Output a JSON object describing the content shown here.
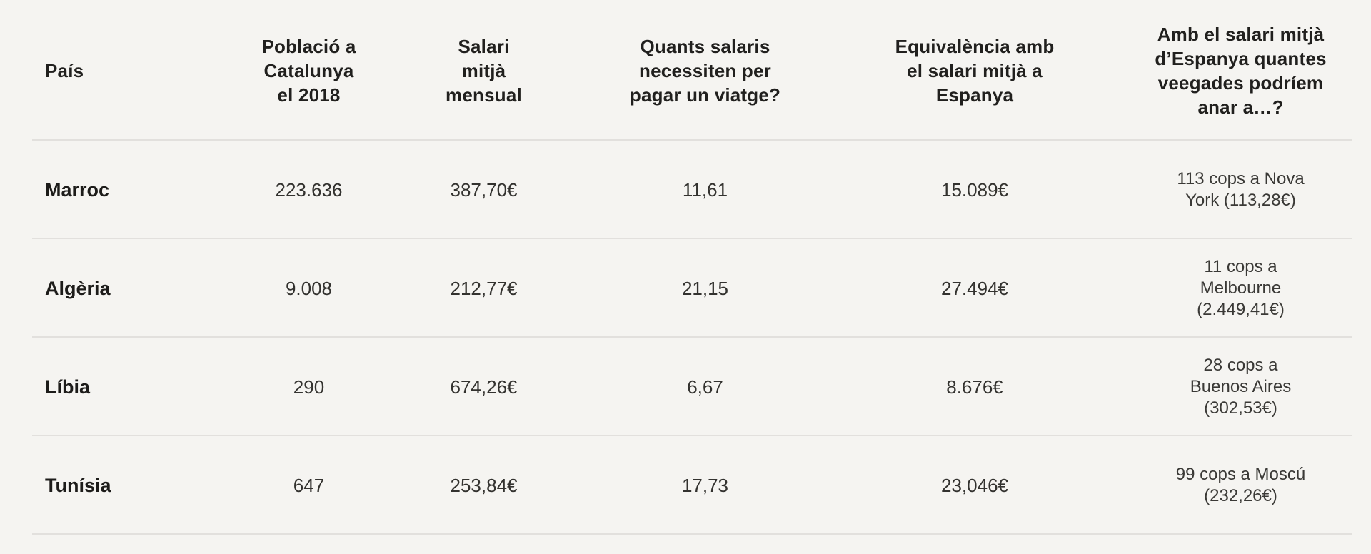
{
  "page": {
    "background_color": "#f5f4f1",
    "divider_color": "#e2e0dd",
    "header_text_color": "#21201e",
    "body_text_color": "#33322f"
  },
  "table": {
    "headers": [
      "País",
      "Població a\nCatalunya\nel 2018",
      "Salari\nmitjà\nmensual",
      "Quants salaris\nnecessiten per\npagar un viatge?",
      "Equivalència amb\nel salari mitjà a\nEspanya",
      "Amb el salari mitjà\nd’Espanya quantes\nveegades podríem\nanar a…?"
    ],
    "rows": [
      {
        "country": "Marroc",
        "population_2018": "223.636",
        "avg_salary": "387,70€",
        "salaries_per_trip": "11,61",
        "equivalence_spain": "15.089€",
        "times_with_spanish_salary": "113 cops a Nova\nYork (113,28€)"
      },
      {
        "country": "Algèria",
        "population_2018": "9.008",
        "avg_salary": "212,77€",
        "salaries_per_trip": "21,15",
        "equivalence_spain": "27.494€",
        "times_with_spanish_salary": "11 cops a\nMelbourne\n(2.449,41€)"
      },
      {
        "country": "Líbia",
        "population_2018": "290",
        "avg_salary": "674,26€",
        "salaries_per_trip": "6,67",
        "equivalence_spain": "8.676€",
        "times_with_spanish_salary": "28 cops a\nBuenos Aires\n(302,53€)"
      },
      {
        "country": "Tunísia",
        "population_2018": "647",
        "avg_salary": "253,84€",
        "salaries_per_trip": "17,73",
        "equivalence_spain": "23,046€",
        "times_with_spanish_salary": "99 cops a Moscú\n(232,26€)"
      }
    ]
  },
  "chart_data": {
    "type": "table",
    "title": "",
    "columns": [
      "País",
      "Població a Catalunya el 2018",
      "Salari mitjà mensual",
      "Quants salaris necessiten per pagar un viatge?",
      "Equivalència amb el salari mitjà a Espanya",
      "Amb el salari mitjà d’Espanya quantes veegades podríem anar a…?"
    ],
    "rows": [
      [
        "Marroc",
        "223.636",
        "387,70€",
        "11,61",
        "15.089€",
        "113 cops a Nova York (113,28€)"
      ],
      [
        "Algèria",
        "9.008",
        "212,77€",
        "21,15",
        "27.494€",
        "11 cops a Melbourne (2.449,41€)"
      ],
      [
        "Líbia",
        "290",
        "674,26€",
        "6,67",
        "8.676€",
        "28 cops a Buenos Aires (302,53€)"
      ],
      [
        "Tunísia",
        "647",
        "253,84€",
        "17,73",
        "23,046€",
        "99 cops a Moscú (232,26€)"
      ]
    ]
  }
}
